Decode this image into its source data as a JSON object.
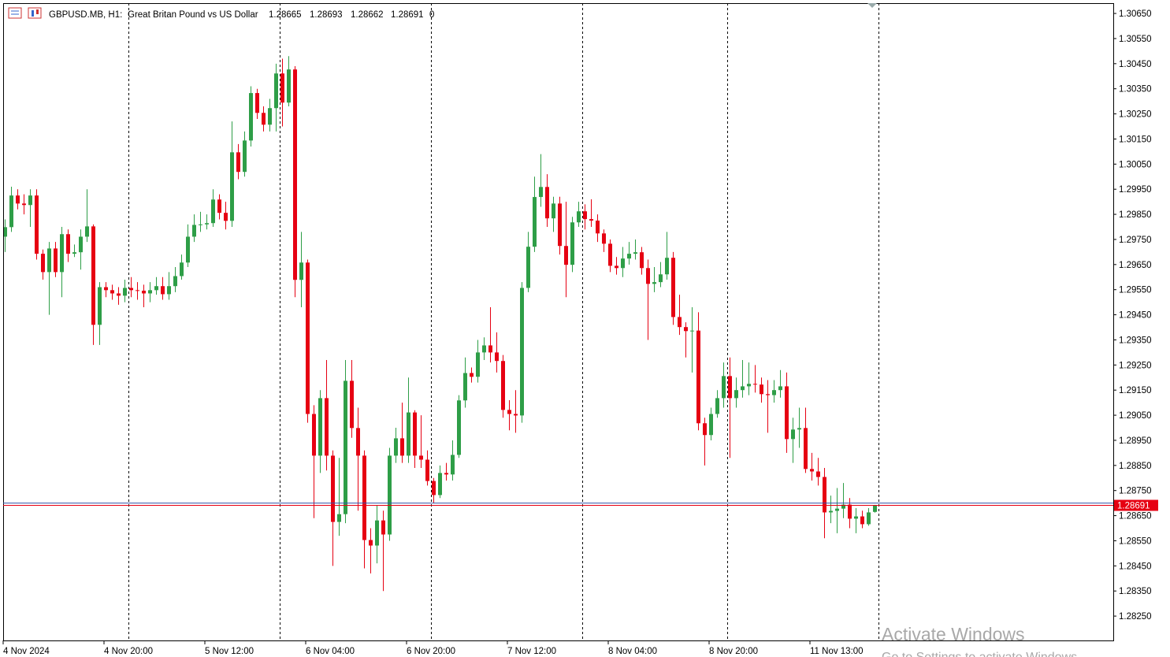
{
  "chart_data": {
    "type": "candlestick",
    "title": "GBPUSD.MB, H1:",
    "subtitle": "Great Britan Pound vs US Dollar",
    "volume": 0,
    "up_color": "#2e9e47",
    "down_color": "#e60012",
    "ask_line": 1.287,
    "ask_color": "#3355aa",
    "categories": [
      "4 Nov 2024",
      null,
      null,
      null,
      null,
      null,
      null,
      null,
      null,
      null,
      null,
      null,
      null,
      null,
      null,
      null,
      "4 Nov 20:00",
      null,
      null,
      null,
      null,
      null,
      null,
      null,
      null,
      null,
      null,
      null,
      null,
      null,
      null,
      null,
      "5 Nov 12:00",
      null,
      null,
      null,
      null,
      null,
      null,
      null,
      null,
      null,
      null,
      null,
      null,
      null,
      null,
      null,
      "6 Nov 04:00",
      null,
      null,
      null,
      null,
      null,
      null,
      null,
      null,
      null,
      null,
      null,
      null,
      null,
      null,
      null,
      "6 Nov 20:00",
      null,
      null,
      null,
      null,
      null,
      null,
      null,
      null,
      null,
      null,
      null,
      null,
      null,
      null,
      null,
      "7 Nov 12:00",
      null,
      null,
      null,
      null,
      null,
      null,
      null,
      null,
      null,
      null,
      null,
      null,
      null,
      null,
      null,
      "8 Nov 04:00",
      null,
      null,
      null,
      null,
      null,
      null,
      null,
      null,
      null,
      null,
      null,
      null,
      null,
      null,
      null,
      "8 Nov 20:00",
      null,
      null,
      null,
      null,
      null,
      null,
      null,
      null,
      null,
      null,
      null,
      null,
      null,
      null,
      null,
      "11 Nov 13:00",
      null,
      null,
      null,
      null,
      null,
      null,
      null,
      null,
      null,
      null
    ],
    "open": [
      1.29761,
      1.29799,
      1.29925,
      1.29893,
      1.29887,
      1.29925,
      1.29693,
      1.2962,
      1.29714,
      1.2962,
      1.29771,
      1.29693,
      1.29699,
      1.29761,
      1.29802,
      1.2941,
      1.2956,
      1.29548,
      1.29535,
      1.29526,
      1.29557,
      1.29548,
      1.29546,
      1.29535,
      1.29548,
      1.29564,
      1.29532,
      1.29564,
      1.29604,
      1.29658,
      1.29761,
      1.29808,
      1.2981,
      1.29815,
      1.29909,
      1.29856,
      1.29824,
      1.30097,
      1.30019,
      1.30144,
      1.30333,
      1.30254,
      1.30207,
      1.30273,
      1.30411,
      1.30295,
      1.30427,
      1.29589,
      1.29658,
      1.29055,
      1.28889,
      1.29118,
      1.28889,
      1.28625,
      1.28656,
      1.29187,
      1.28999,
      1.28889,
      1.28553,
      1.28531,
      1.28631,
      1.28575,
      1.28889,
      1.28958,
      1.28889,
      1.29061,
      1.28889,
      1.28873,
      1.28788,
      1.28732,
      1.2882,
      1.28814,
      1.28892,
      1.29109,
      1.29218,
      1.29203,
      1.293,
      1.29328,
      1.293,
      1.29266,
      1.29071,
      1.29055,
      1.29049,
      1.29557,
      1.29721,
      1.29919,
      1.29959,
      1.29834,
      1.29893,
      1.29724,
      1.29649,
      1.29818,
      1.29862,
      1.29831,
      1.29825,
      1.29774,
      1.29733,
      1.29645,
      1.29636,
      1.29674,
      1.29693,
      1.29699,
      1.29636,
      1.29573,
      1.2958,
      1.29611,
      1.29677,
      1.29441,
      1.29401,
      1.29385,
      1.29387,
      1.29018,
      1.28971,
      1.29055,
      1.29118,
      1.29206,
      1.29118,
      1.2915,
      1.29165,
      1.29175,
      1.29172,
      1.29134,
      1.2913,
      1.2915,
      1.29165,
      1.28955,
      1.28993,
      1.28999,
      1.28836,
      1.28826,
      1.28804,
      1.28663,
      1.28669,
      1.28678,
      1.28694,
      1.28638,
      1.28647,
      1.28616,
      1.28665
    ],
    "high": [
      1.2983,
      1.2996,
      1.2995,
      1.2993,
      1.2995,
      1.2995,
      1.2971,
      1.2974,
      1.2974,
      1.298,
      1.2979,
      1.2973,
      1.2979,
      1.2995,
      1.2981,
      1.2958,
      1.2958,
      1.2957,
      1.2956,
      1.2959,
      1.296,
      1.2958,
      1.2957,
      1.2958,
      1.296,
      1.296,
      1.2962,
      1.2964,
      1.2969,
      1.2981,
      1.2985,
      1.2986,
      1.2985,
      1.2995,
      1.2993,
      1.299,
      1.3022,
      1.3013,
      1.3018,
      1.3036,
      1.3035,
      1.3028,
      1.3031,
      1.3045,
      1.3047,
      1.3048,
      1.3044,
      1.2978,
      1.2967,
      1.2909,
      1.2915,
      1.2927,
      1.2891,
      1.2888,
      1.2927,
      1.2927,
      1.2908,
      1.2891,
      1.286,
      1.2869,
      1.2867,
      1.2892,
      1.29,
      1.291,
      1.292,
      1.2907,
      1.2905,
      1.2891,
      1.288,
      1.2885,
      1.2886,
      1.2895,
      1.2913,
      1.2928,
      1.2924,
      1.2935,
      1.2936,
      1.2948,
      1.2938,
      1.2929,
      1.2911,
      1.2915,
      1.2958,
      1.2978,
      1.3,
      1.3009,
      1.3001,
      1.2992,
      1.2992,
      1.299,
      1.2984,
      1.299,
      1.2989,
      1.2991,
      1.2985,
      1.2979,
      1.2975,
      1.2968,
      1.2972,
      1.2974,
      1.2975,
      1.2972,
      1.2967,
      1.2964,
      1.2966,
      1.2978,
      1.297,
      1.2953,
      1.2942,
      1.2948,
      1.2946,
      1.2904,
      1.2908,
      1.2915,
      1.2926,
      1.2928,
      1.292,
      1.2927,
      1.2926,
      1.2925,
      1.292,
      1.2919,
      1.2919,
      1.2923,
      1.2922,
      1.2904,
      1.2908,
      1.2908,
      1.289,
      1.2888,
      1.2884,
      1.2873,
      1.2876,
      1.2878,
      1.2872,
      1.2868,
      1.2867,
      1.2868,
      1.28693
    ],
    "low": [
      1.297,
      1.2978,
      1.2987,
      1.2985,
      1.298,
      1.2967,
      1.2959,
      1.2945,
      1.296,
      1.2952,
      1.2966,
      1.2968,
      1.2963,
      1.2974,
      1.2933,
      1.2933,
      1.2952,
      1.2951,
      1.2949,
      1.295,
      1.2952,
      1.2951,
      1.2948,
      1.295,
      1.2953,
      1.2951,
      1.2951,
      1.2954,
      1.2959,
      1.2964,
      1.2974,
      1.2978,
      1.2979,
      1.298,
      1.2983,
      1.2979,
      1.298,
      1.2999,
      1.3,
      1.3012,
      1.3023,
      1.3018,
      1.3018,
      1.3018,
      1.302,
      1.3028,
      1.2952,
      1.2948,
      1.2902,
      1.2864,
      1.2882,
      1.2883,
      1.2845,
      1.2857,
      1.2862,
      1.2896,
      1.2867,
      1.2844,
      1.2842,
      1.2846,
      1.2835,
      1.2855,
      1.2886,
      1.2886,
      1.2886,
      1.2884,
      1.2884,
      1.2877,
      1.287,
      1.2872,
      1.2879,
      1.2879,
      1.2888,
      1.2908,
      1.2918,
      1.2918,
      1.2927,
      1.2926,
      1.2922,
      1.2904,
      1.2899,
      1.2898,
      1.2902,
      1.2954,
      1.297,
      1.2988,
      1.298,
      1.2978,
      1.2969,
      1.2952,
      1.2962,
      1.298,
      1.2979,
      1.298,
      1.2974,
      1.297,
      1.2962,
      1.2961,
      1.296,
      1.2965,
      1.2967,
      1.2961,
      1.2935,
      1.2954,
      1.2956,
      1.2959,
      1.2941,
      1.2937,
      1.2928,
      1.2922,
      1.2899,
      1.2885,
      1.2895,
      1.2904,
      1.2908,
      1.2888,
      1.2908,
      1.2912,
      1.2913,
      1.2914,
      1.291,
      1.2898,
      1.291,
      1.2912,
      1.289,
      1.2886,
      1.2892,
      1.2882,
      1.2879,
      1.2877,
      1.2856,
      1.2862,
      1.2858,
      1.2864,
      1.286,
      1.2858,
      1.286,
      1.2861,
      1.28662
    ],
    "close": [
      1.29799,
      1.29925,
      1.29893,
      1.29887,
      1.29925,
      1.29693,
      1.2962,
      1.29714,
      1.2962,
      1.29771,
      1.29693,
      1.29699,
      1.29761,
      1.29802,
      1.2941,
      1.2956,
      1.29548,
      1.29535,
      1.29526,
      1.29557,
      1.29548,
      1.29546,
      1.29535,
      1.29548,
      1.29564,
      1.29532,
      1.29564,
      1.29604,
      1.29658,
      1.29761,
      1.29808,
      1.2981,
      1.29815,
      1.29909,
      1.29856,
      1.29824,
      1.30097,
      1.30019,
      1.30144,
      1.30333,
      1.30254,
      1.30207,
      1.30273,
      1.30411,
      1.30295,
      1.30427,
      1.29589,
      1.29658,
      1.29055,
      1.28889,
      1.29118,
      1.28889,
      1.28625,
      1.28656,
      1.29187,
      1.28999,
      1.28889,
      1.28553,
      1.28531,
      1.28631,
      1.28575,
      1.28889,
      1.28958,
      1.28889,
      1.29061,
      1.28889,
      1.28873,
      1.28788,
      1.28732,
      1.2882,
      1.28814,
      1.28892,
      1.29109,
      1.29218,
      1.29203,
      1.293,
      1.29328,
      1.293,
      1.29266,
      1.29071,
      1.29055,
      1.29049,
      1.29557,
      1.29721,
      1.29919,
      1.29959,
      1.29834,
      1.29893,
      1.29724,
      1.29649,
      1.29818,
      1.29862,
      1.29831,
      1.29825,
      1.29774,
      1.29733,
      1.29645,
      1.29636,
      1.29674,
      1.29693,
      1.29699,
      1.29636,
      1.29573,
      1.2958,
      1.29611,
      1.29677,
      1.29441,
      1.29401,
      1.29385,
      1.29387,
      1.29018,
      1.28971,
      1.29055,
      1.29118,
      1.29206,
      1.29118,
      1.2915,
      1.29165,
      1.29175,
      1.29172,
      1.29134,
      1.2913,
      1.2915,
      1.29165,
      1.28955,
      1.28993,
      1.28999,
      1.28836,
      1.28826,
      1.28804,
      1.28663,
      1.28669,
      1.28678,
      1.28694,
      1.28638,
      1.28647,
      1.28616,
      1.28663,
      1.28691
    ],
    "ylim": [
      1.28153,
      1.30691
    ],
    "yticks": [
      {
        "value": 1.3065,
        "label": "1.30650"
      },
      {
        "value": 1.3055,
        "label": "1.30550"
      },
      {
        "value": 1.3045,
        "label": "1.30450"
      },
      {
        "value": 1.3035,
        "label": "1.30350"
      },
      {
        "value": 1.3025,
        "label": "1.30250"
      },
      {
        "value": 1.3015,
        "label": "1.30150"
      },
      {
        "value": 1.3005,
        "label": "1.30050"
      },
      {
        "value": 1.2995,
        "label": "1.29950"
      },
      {
        "value": 1.2985,
        "label": "1.29850"
      },
      {
        "value": 1.2975,
        "label": "1.29750"
      },
      {
        "value": 1.2965,
        "label": "1.29650"
      },
      {
        "value": 1.2955,
        "label": "1.29550"
      },
      {
        "value": 1.2945,
        "label": "1.29450"
      },
      {
        "value": 1.2935,
        "label": "1.29350"
      },
      {
        "value": 1.2925,
        "label": "1.29250"
      },
      {
        "value": 1.2915,
        "label": "1.29150"
      },
      {
        "value": 1.2905,
        "label": "1.29050"
      },
      {
        "value": 1.2895,
        "label": "1.28950"
      },
      {
        "value": 1.2885,
        "label": "1.28850"
      },
      {
        "value": 1.2875,
        "label": "1.28750"
      },
      {
        "value": 1.2865,
        "label": "1.28650"
      },
      {
        "value": 1.2855,
        "label": "1.28550"
      },
      {
        "value": 1.2845,
        "label": "1.28450"
      },
      {
        "value": 1.2835,
        "label": "1.28350"
      },
      {
        "value": 1.2825,
        "label": "1.28250"
      }
    ],
    "overlay": {
      "line1": "Activate Windows",
      "line2": "Go to Settings to activate Windows."
    }
  }
}
